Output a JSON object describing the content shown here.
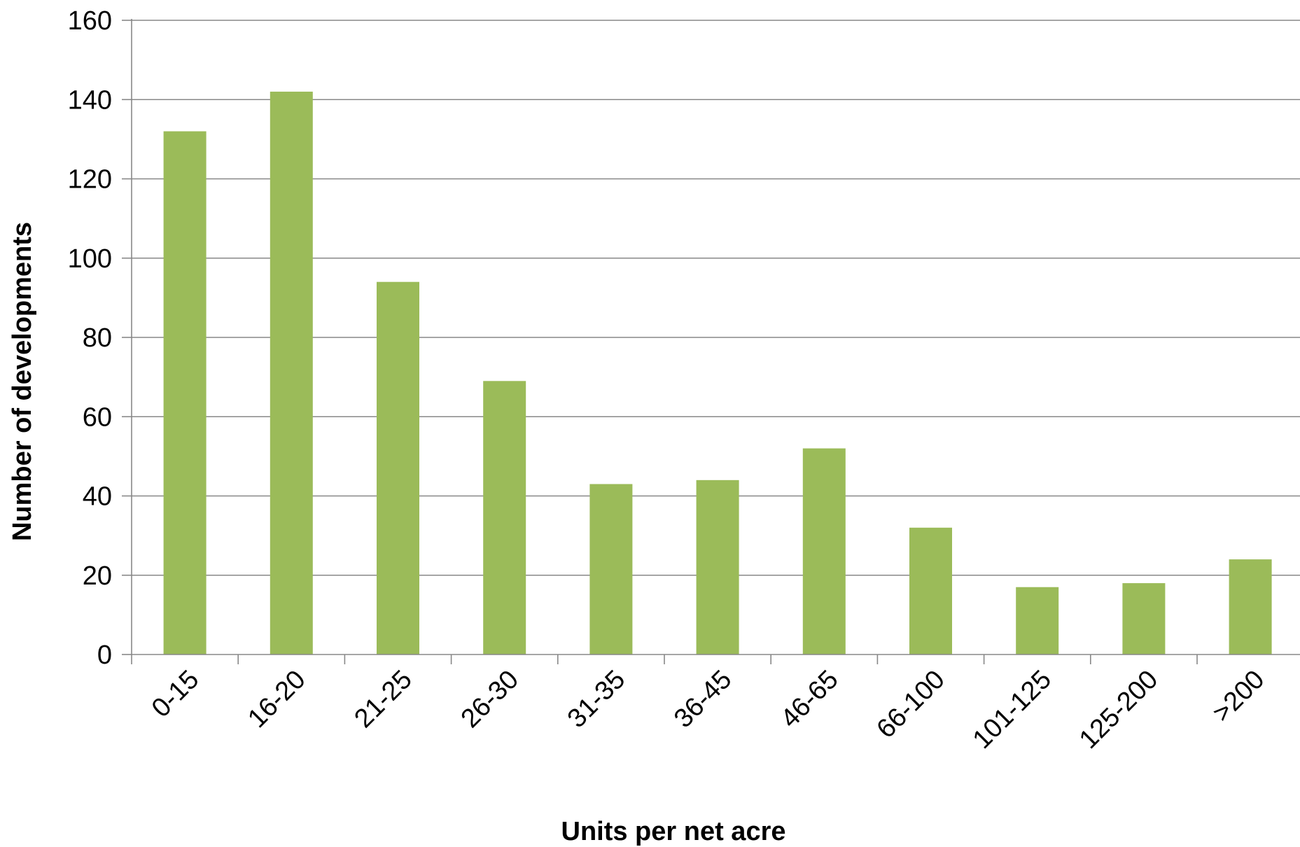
{
  "chart_data": {
    "type": "bar",
    "title": "",
    "xlabel": "Units per net acre",
    "ylabel": "Number of developments",
    "categories": [
      "0-15",
      "16-20",
      "21-25",
      "26-30",
      "31-35",
      "36-45",
      "46-65",
      "66-100",
      "101-125",
      "125-200",
      ">200"
    ],
    "values": [
      132,
      142,
      94,
      69,
      43,
      44,
      52,
      32,
      17,
      18,
      24
    ],
    "ylim": [
      0,
      160
    ],
    "yticks": [
      0,
      20,
      40,
      60,
      80,
      100,
      120,
      140,
      160
    ],
    "grid": true,
    "legend": "none",
    "colors": {
      "bar": "#9BBB59",
      "grid": "#888888",
      "axis": "#888888"
    }
  }
}
